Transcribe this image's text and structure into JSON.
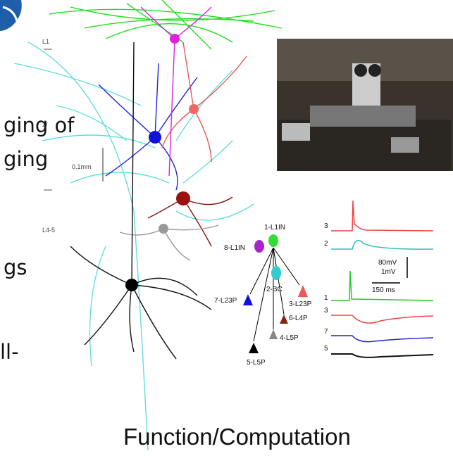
{
  "slide_text": [
    "ging of",
    "ging",
    "gs",
    "ll-"
  ],
  "layer_labels": [
    "L1",
    "2/",
    "L4-5"
  ],
  "scale_bar": "0.1mm",
  "caption": "Function/Computation",
  "diagram": {
    "nodes": [
      "1-L1IN",
      "8-L1IN",
      "2-BC",
      "3-L23P",
      "7-L23P",
      "6-L4P",
      "4-L5P",
      "5-L5P"
    ]
  },
  "traces": {
    "labels": [
      "3",
      "2",
      "1",
      "3",
      "7",
      "5"
    ],
    "scale": [
      "80mV",
      "1mV",
      "150 ms"
    ]
  }
}
